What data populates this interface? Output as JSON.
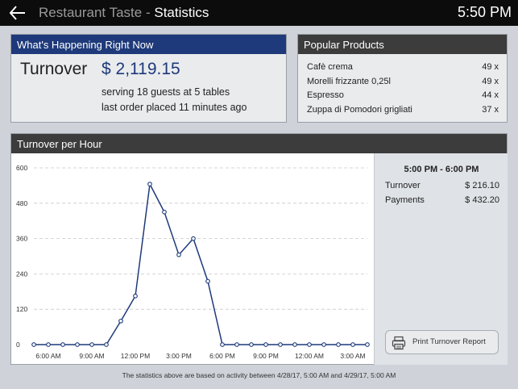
{
  "header": {
    "app_name": "Restaurant Taste",
    "separator": "-",
    "page_title": "Statistics",
    "time": "5:50 PM"
  },
  "happening": {
    "title": "What's Happening Right Now",
    "turnover_label": "Turnover",
    "turnover_value": "$ 2,119.15",
    "guests_line": "serving 18 guests at 5 tables",
    "last_order_line": "last order placed 11 minutes ago"
  },
  "popular": {
    "title": "Popular Products",
    "items": [
      {
        "name": "Cafè crema",
        "qty": "49 x"
      },
      {
        "name": "Morelli frizzante 0,25l",
        "qty": "49 x"
      },
      {
        "name": "Espresso",
        "qty": "44 x"
      },
      {
        "name": "Zuppa di Pomodori grigliati",
        "qty": "37 x"
      }
    ]
  },
  "turnover_chart": {
    "title": "Turnover per Hour",
    "selected": {
      "range": "5:00 PM - 6:00 PM",
      "turnover_label": "Turnover",
      "turnover_value": "$ 216.10",
      "payments_label": "Payments",
      "payments_value": "$ 432.20"
    },
    "print_label": "Print Turnover Report"
  },
  "chart_data": {
    "type": "line",
    "title": "Turnover per Hour",
    "xlabel": "",
    "ylabel": "",
    "ylim": [
      0,
      600
    ],
    "yticks": [
      0,
      120,
      240,
      360,
      480,
      600
    ],
    "xtick_labels": [
      "6:00 AM",
      "9:00 AM",
      "12:00 PM",
      "3:00 PM",
      "6:00 PM",
      "9:00 PM",
      "12:00 AM",
      "3:00 AM"
    ],
    "x": [
      "5:00 AM",
      "6:00 AM",
      "7:00 AM",
      "8:00 AM",
      "9:00 AM",
      "10:00 AM",
      "11:00 AM",
      "12:00 PM",
      "1:00 PM",
      "2:00 PM",
      "3:00 PM",
      "4:00 PM",
      "5:00 PM",
      "6:00 PM",
      "7:00 PM",
      "8:00 PM",
      "9:00 PM",
      "10:00 PM",
      "11:00 PM",
      "12:00 AM",
      "1:00 AM",
      "2:00 AM",
      "3:00 AM",
      "4:00 AM"
    ],
    "series": [
      {
        "values": [
          0,
          0,
          0,
          0,
          0,
          0,
          80,
          165,
          545,
          450,
          305,
          360,
          215,
          0,
          0,
          0,
          0,
          0,
          0,
          0,
          0,
          0,
          0,
          0
        ]
      }
    ],
    "grid": true,
    "line_color": "#1e3a7a"
  },
  "footnote": "The statistics above are based on activity between 4/28/17, 5:00 AM and 4/29/17, 5:00 AM"
}
